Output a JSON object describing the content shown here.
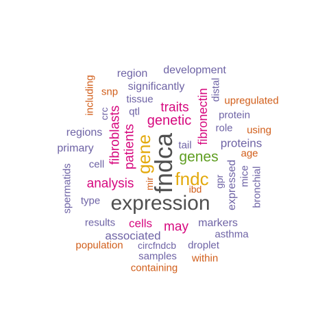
{
  "colors": {
    "purple": "#6e63a5",
    "magenta": "#d6087e",
    "gray": "#4f4f4f",
    "orange": "#d15e1a",
    "gold": "#e3a90c",
    "green": "#5e9d20"
  },
  "words": [
    {
      "text": "expression",
      "color": "purple_gray",
      "vertical": false
    },
    {
      "text": "fndca",
      "vertical": true
    },
    {
      "text": "fndc",
      "vertical": false
    },
    {
      "text": "gene",
      "vertical": true
    },
    {
      "text": "genes",
      "vertical": false
    },
    {
      "text": "fibroblasts",
      "vertical": true
    },
    {
      "text": "fibronectin",
      "vertical": true
    },
    {
      "text": "genetic",
      "vertical": false
    },
    {
      "text": "traits",
      "vertical": false
    },
    {
      "text": "patients",
      "vertical": true
    },
    {
      "text": "analysis",
      "vertical": false
    },
    {
      "text": "cells",
      "vertical": false
    },
    {
      "text": "may",
      "vertical": false
    },
    {
      "text": "associated",
      "vertical": false
    },
    {
      "text": "development",
      "vertical": false
    },
    {
      "text": "significantly",
      "vertical": false
    },
    {
      "text": "region",
      "vertical": false
    },
    {
      "text": "regions",
      "vertical": false
    },
    {
      "text": "primary",
      "vertical": false
    },
    {
      "text": "proteins",
      "vertical": false
    },
    {
      "text": "protein",
      "vertical": false
    },
    {
      "text": "expressed",
      "vertical": true
    },
    {
      "text": "bronchial",
      "vertical": true
    },
    {
      "text": "mice",
      "vertical": true
    },
    {
      "text": "markers",
      "vertical": false
    },
    {
      "text": "asthma",
      "vertical": false
    },
    {
      "text": "droplet",
      "vertical": false
    },
    {
      "text": "circfndcb",
      "vertical": false
    },
    {
      "text": "samples",
      "vertical": false
    },
    {
      "text": "results",
      "vertical": false
    },
    {
      "text": "type",
      "vertical": false
    },
    {
      "text": "spermatids",
      "vertical": true
    },
    {
      "text": "cell",
      "vertical": false
    },
    {
      "text": "role",
      "vertical": false
    },
    {
      "text": "tissue",
      "vertical": false
    },
    {
      "text": "distal",
      "vertical": true
    },
    {
      "text": "qtl",
      "vertical": false
    },
    {
      "text": "crc",
      "vertical": true
    },
    {
      "text": "tail",
      "vertical": false
    },
    {
      "text": "gpr",
      "vertical": true
    },
    {
      "text": "mir",
      "vertical": true
    },
    {
      "text": "upregulated",
      "vertical": false
    },
    {
      "text": "using",
      "vertical": false
    },
    {
      "text": "age",
      "vertical": false
    },
    {
      "text": "ibd",
      "vertical": false
    },
    {
      "text": "snp",
      "vertical": false
    },
    {
      "text": "including",
      "vertical": true
    },
    {
      "text": "population",
      "vertical": false
    },
    {
      "text": "within",
      "vertical": false
    },
    {
      "text": "containing",
      "vertical": false
    }
  ]
}
